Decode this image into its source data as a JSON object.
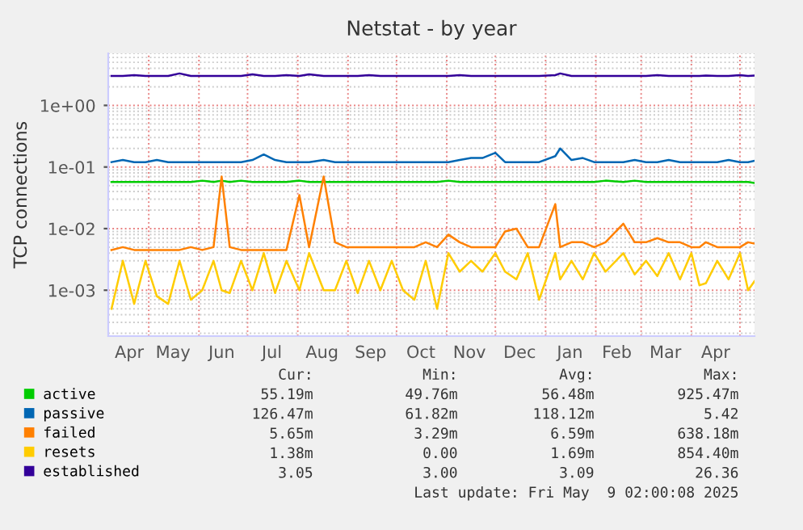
{
  "chart_data": {
    "type": "line",
    "title": "Netstat - by year",
    "ylabel": "TCP connections",
    "x": [
      "2024-04-08",
      "2024-04-15",
      "2024-04-22",
      "2024-04-29",
      "2024-05-06",
      "2024-05-13",
      "2024-05-20",
      "2024-05-27",
      "2024-06-03",
      "2024-06-10",
      "2024-06-15",
      "2024-06-20",
      "2024-06-27",
      "2024-07-04",
      "2024-07-11",
      "2024-07-18",
      "2024-07-25",
      "2024-08-02",
      "2024-08-08",
      "2024-08-17",
      "2024-08-24",
      "2024-08-31",
      "2024-09-07",
      "2024-09-14",
      "2024-09-21",
      "2024-09-28",
      "2024-10-05",
      "2024-10-12",
      "2024-10-19",
      "2024-10-26",
      "2024-11-02",
      "2024-11-09",
      "2024-11-16",
      "2024-11-23",
      "2024-12-01",
      "2024-12-07",
      "2024-12-14",
      "2024-12-21",
      "2024-12-28",
      "2025-01-07",
      "2025-01-10",
      "2025-01-17",
      "2025-01-24",
      "2025-01-31",
      "2025-02-07",
      "2025-02-18",
      "2025-02-25",
      "2025-03-04",
      "2025-03-11",
      "2025-03-18",
      "2025-03-25",
      "2025-04-01",
      "2025-04-06",
      "2025-04-10",
      "2025-04-17",
      "2025-04-24",
      "2025-05-01",
      "2025-05-06",
      "2025-05-10"
    ],
    "log": "y",
    "ylim": [
      0.00018,
      7
    ],
    "yticks": [
      {
        "value": 0.001,
        "label": "1e-03"
      },
      {
        "value": 0.01,
        "label": "1e-02"
      },
      {
        "value": 0.1,
        "label": "1e-01"
      },
      {
        "value": 1,
        "label": "1e+00"
      }
    ],
    "xlim": [
      "2024-04-06",
      "2025-05-10"
    ],
    "xticks": [
      {
        "value": "2024-04-19",
        "label": "Apr"
      },
      {
        "value": "2024-05-16",
        "label": "May"
      },
      {
        "value": "2024-06-15",
        "label": "Jun"
      },
      {
        "value": "2024-07-16",
        "label": "Jul"
      },
      {
        "value": "2024-08-16",
        "label": "Aug"
      },
      {
        "value": "2024-09-15",
        "label": "Sep"
      },
      {
        "value": "2024-10-16",
        "label": "Oct"
      },
      {
        "value": "2024-11-15",
        "label": "Nov"
      },
      {
        "value": "2024-12-16",
        "label": "Dec"
      },
      {
        "value": "2025-01-16",
        "label": "Jan"
      },
      {
        "value": "2025-02-14",
        "label": "Feb"
      },
      {
        "value": "2025-03-16",
        "label": "Mar"
      },
      {
        "value": "2025-04-16",
        "label": "Apr"
      },
      {
        "value": "2024-05-01",
        "label": null
      },
      {
        "value": "2024-06-01",
        "label": null
      },
      {
        "value": "2024-07-01",
        "label": null
      },
      {
        "value": "2024-08-01",
        "label": null
      },
      {
        "value": "2024-09-01",
        "label": null
      },
      {
        "value": "2024-10-01",
        "label": null
      },
      {
        "value": "2024-11-01",
        "label": null
      },
      {
        "value": "2024-12-01",
        "label": null
      },
      {
        "value": "2025-01-01",
        "label": null
      },
      {
        "value": "2025-02-01",
        "label": null
      },
      {
        "value": "2025-03-01",
        "label": null
      },
      {
        "value": "2025-04-01",
        "label": null
      },
      {
        "value": "2025-05-01",
        "label": null
      }
    ],
    "grid": true,
    "legend": "bottom left",
    "marker": "none",
    "line_style": "solid",
    "series": [
      {
        "name": "active",
        "color": "#00cc00",
        "values": [
          0.057,
          0.057,
          0.057,
          0.057,
          0.057,
          0.057,
          0.057,
          0.057,
          0.06,
          0.057,
          0.06,
          0.057,
          0.06,
          0.057,
          0.057,
          0.057,
          0.057,
          0.06,
          0.057,
          0.057,
          0.057,
          0.057,
          0.057,
          0.057,
          0.057,
          0.057,
          0.057,
          0.057,
          0.057,
          0.057,
          0.06,
          0.057,
          0.057,
          0.057,
          0.057,
          0.057,
          0.057,
          0.057,
          0.057,
          0.057,
          0.057,
          0.057,
          0.057,
          0.057,
          0.06,
          0.057,
          0.06,
          0.057,
          0.057,
          0.057,
          0.057,
          0.057,
          0.057,
          0.057,
          0.057,
          0.057,
          0.057,
          0.057,
          0.055
        ]
      },
      {
        "name": "passive",
        "color": "#0066b3",
        "values": [
          0.12,
          0.13,
          0.12,
          0.12,
          0.13,
          0.12,
          0.12,
          0.12,
          0.12,
          0.12,
          0.12,
          0.12,
          0.12,
          0.13,
          0.16,
          0.13,
          0.12,
          0.12,
          0.12,
          0.13,
          0.12,
          0.12,
          0.12,
          0.12,
          0.12,
          0.12,
          0.12,
          0.12,
          0.12,
          0.12,
          0.12,
          0.13,
          0.14,
          0.14,
          0.17,
          0.12,
          0.12,
          0.12,
          0.12,
          0.15,
          0.2,
          0.13,
          0.14,
          0.12,
          0.12,
          0.12,
          0.13,
          0.12,
          0.12,
          0.13,
          0.12,
          0.12,
          0.12,
          0.12,
          0.12,
          0.13,
          0.12,
          0.12,
          0.126
        ]
      },
      {
        "name": "failed",
        "color": "#ff8000",
        "values": [
          0.0045,
          0.005,
          0.0045,
          0.0045,
          0.0045,
          0.0045,
          0.0045,
          0.005,
          0.0045,
          0.005,
          0.07,
          0.005,
          0.0045,
          0.0045,
          0.0045,
          0.0045,
          0.0045,
          0.035,
          0.005,
          0.07,
          0.006,
          0.005,
          0.005,
          0.005,
          0.005,
          0.005,
          0.005,
          0.005,
          0.006,
          0.005,
          0.008,
          0.006,
          0.005,
          0.005,
          0.005,
          0.009,
          0.01,
          0.005,
          0.005,
          0.025,
          0.005,
          0.006,
          0.006,
          0.005,
          0.006,
          0.012,
          0.006,
          0.006,
          0.007,
          0.006,
          0.006,
          0.005,
          0.005,
          0.006,
          0.005,
          0.005,
          0.005,
          0.006,
          0.0057
        ]
      },
      {
        "name": "resets",
        "color": "#ffcc00",
        "values": [
          0.0005,
          0.003,
          0.0006,
          0.003,
          0.0008,
          0.0006,
          0.003,
          0.0007,
          0.001,
          0.003,
          0.001,
          0.0009,
          0.003,
          0.001,
          0.004,
          0.0009,
          0.003,
          0.001,
          0.004,
          0.001,
          0.001,
          0.003,
          0.0009,
          0.003,
          0.001,
          0.003,
          0.001,
          0.0007,
          0.003,
          0.0005,
          0.004,
          0.002,
          0.003,
          0.002,
          0.004,
          0.002,
          0.0015,
          0.004,
          0.0007,
          0.004,
          0.0015,
          0.003,
          0.0015,
          0.004,
          0.002,
          0.004,
          0.0018,
          0.003,
          0.0017,
          0.004,
          0.0015,
          0.004,
          0.0012,
          0.0013,
          0.003,
          0.0015,
          0.004,
          0.001,
          0.0014
        ]
      },
      {
        "name": "established",
        "color": "#330099",
        "values": [
          3.0,
          3.0,
          3.1,
          3.0,
          3.0,
          3.0,
          3.3,
          3.0,
          3.0,
          3.0,
          3.0,
          3.0,
          3.0,
          3.2,
          3.0,
          3.0,
          3.1,
          3.0,
          3.2,
          3.0,
          3.0,
          3.0,
          3.0,
          3.1,
          3.0,
          3.0,
          3.0,
          3.0,
          3.0,
          3.0,
          3.0,
          3.1,
          3.0,
          3.0,
          3.0,
          3.0,
          3.0,
          3.0,
          3.0,
          3.1,
          3.3,
          3.0,
          3.0,
          3.0,
          3.0,
          3.0,
          3.0,
          3.0,
          3.1,
          3.0,
          3.0,
          3.0,
          3.0,
          3.05,
          3.0,
          3.0,
          3.1,
          3.0,
          3.05
        ]
      }
    ],
    "annotations": [
      "Cur:",
      "Min:",
      "Avg:",
      "Max:",
      "55.19m",
      "49.76m",
      "56.48m",
      "925.47m",
      "126.47m",
      "61.82m",
      "118.12m",
      "5.42",
      "5.65m",
      "3.29m",
      "6.59m",
      "638.18m",
      "1.38m",
      "0.00",
      "1.69m",
      "854.40m",
      "3.05",
      "3.00",
      "3.09",
      "26.36",
      "Last update: Fri May  9 02:00:08 2025"
    ]
  }
}
